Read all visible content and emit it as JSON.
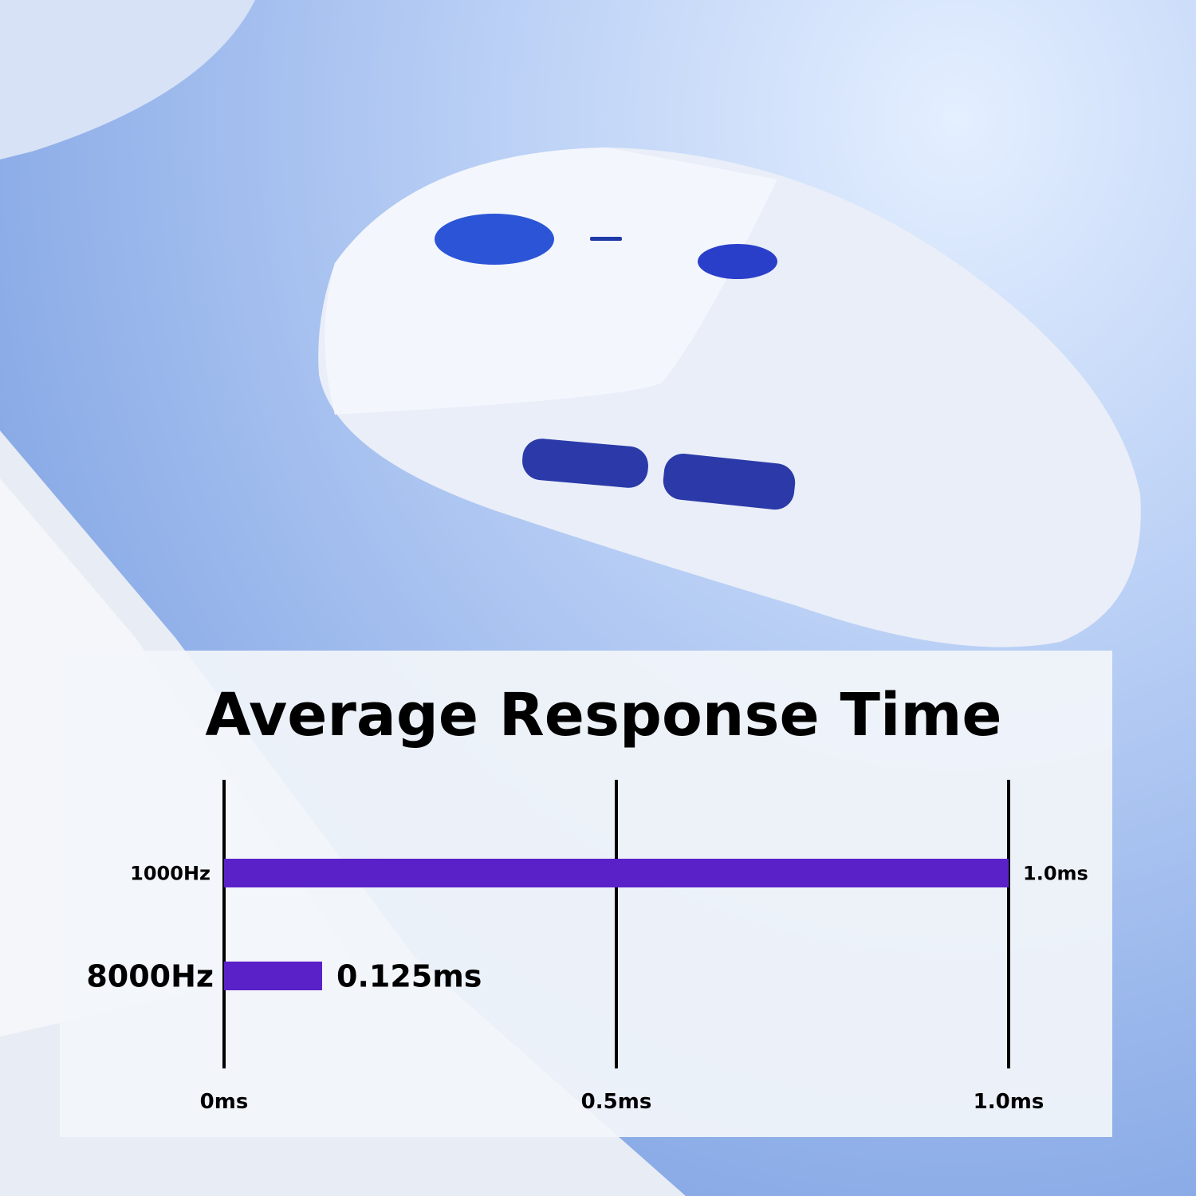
{
  "chart_data": {
    "type": "bar",
    "orientation": "horizontal",
    "title": "Average Response Time",
    "categories": [
      "1000Hz",
      "8000Hz"
    ],
    "values": [
      1.0,
      0.125
    ],
    "data_labels": [
      "1.0ms",
      "0.125ms"
    ],
    "xlim": [
      0,
      1.0
    ],
    "x_ticks": [
      0,
      0.5,
      1.0
    ],
    "x_tick_labels": [
      "0ms",
      "0.5ms",
      "1.0ms"
    ],
    "grid": true,
    "bar_color": "#5b21c9"
  }
}
